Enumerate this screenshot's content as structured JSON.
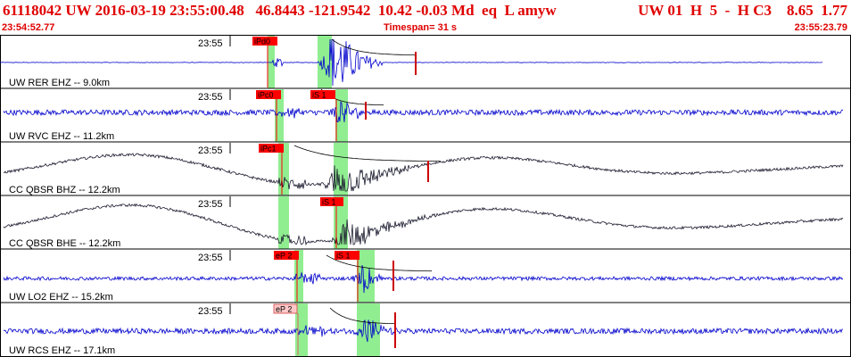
{
  "header": {
    "event_line": "61118042 UW 2016-03-19 23:55:00.48   46.8443 -121.9542  10.42 -0.03 Md  eq  L amyw",
    "station_line": "UW 01  H  5  -  H C3    8.65  1.77",
    "start_time": "23:54:52.77",
    "timespan": "Timespan=  31 s",
    "end_time": "23:55:23.79"
  },
  "colors": {
    "header_text": "#e00000",
    "blue_trace": "#0000cc",
    "black_trace": "#1a1a2e",
    "green_window": "#90ee90",
    "pick_red": "#ff0000",
    "pick_pale": "#ffc8c8",
    "coda": "#cc0000"
  },
  "traces": [
    {
      "label": "UW RER EHZ -- 9.0km",
      "time_label": "23:55",
      "color": "blue",
      "picks": [
        {
          "label": "iPd0",
          "style": "solid"
        }
      ]
    },
    {
      "label": "UW RVC EHZ -- 11.2km",
      "time_label": "23:55",
      "color": "blue",
      "picks": [
        {
          "label": "iPc0",
          "style": "solid"
        },
        {
          "label": "iS 1",
          "style": "solid"
        }
      ]
    },
    {
      "label": "CC QBSR BHZ -- 12.2km",
      "time_label": "23:55",
      "color": "black",
      "picks": [
        {
          "label": "iPc1",
          "style": "solid"
        }
      ]
    },
    {
      "label": "CC QBSR BHE -- 12.2km",
      "time_label": "23:55",
      "color": "black",
      "picks": [
        {
          "label": "iS 1",
          "style": "solid"
        }
      ]
    },
    {
      "label": "UW LO2 EHZ -- 15.2km",
      "time_label": "23:55",
      "color": "blue",
      "picks": [
        {
          "label": "eP 2",
          "style": "solid"
        },
        {
          "label": "iS 1",
          "style": "solid"
        }
      ]
    },
    {
      "label": "UW RCS EHZ -- 17.1km",
      "time_label": "23:55",
      "color": "blue",
      "picks": [
        {
          "label": "eP 2",
          "style": "pale"
        }
      ]
    }
  ]
}
